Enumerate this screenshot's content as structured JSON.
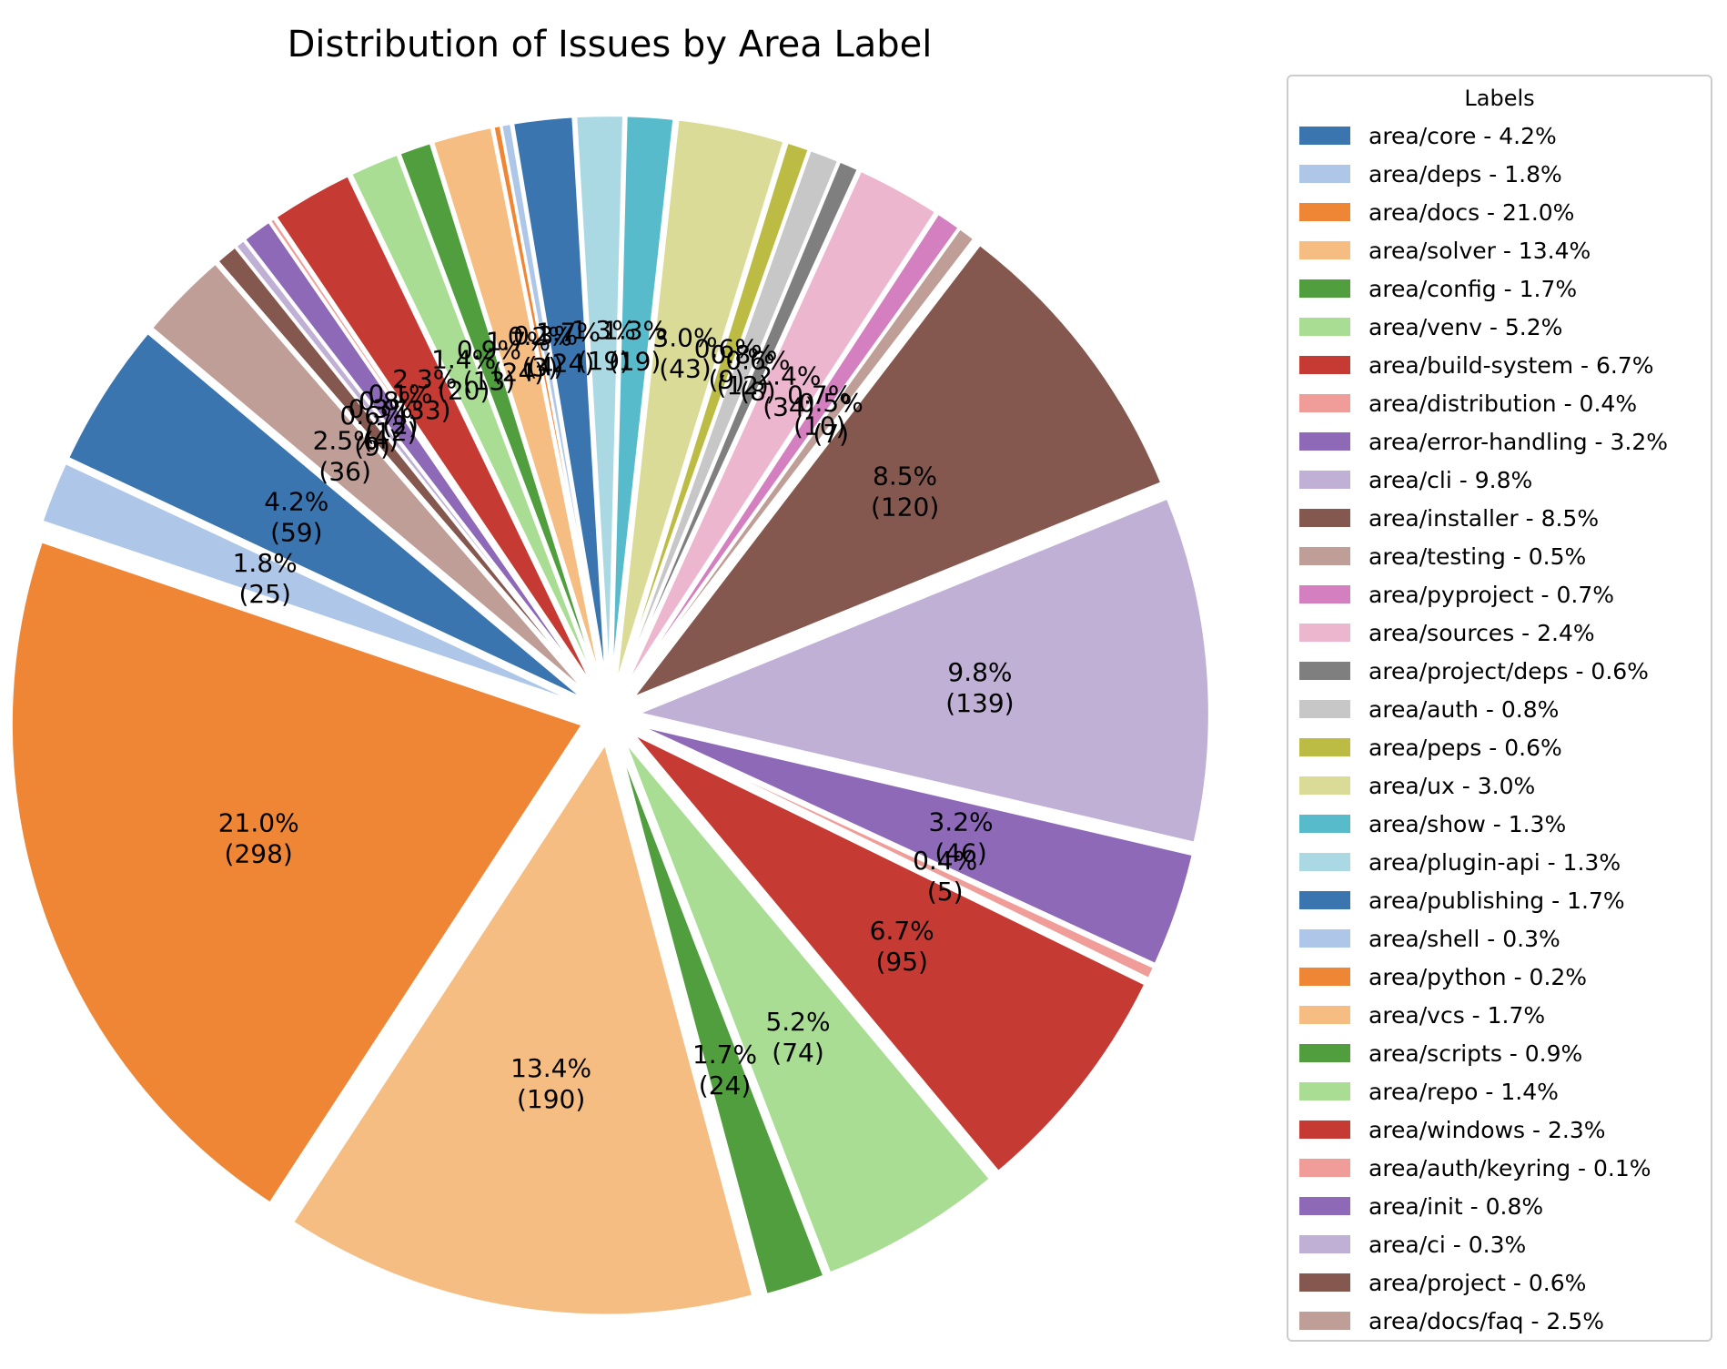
{
  "chart_data": {
    "type": "pie",
    "title": "Distribution of Issues by Area Label",
    "legend_title": "Labels",
    "legend_placement": "right",
    "slices": [
      {
        "label": "area/core",
        "value": 59,
        "pct": "4.2%",
        "color": "#3b75af"
      },
      {
        "label": "area/deps",
        "value": 25,
        "pct": "1.8%",
        "color": "#aec7e8"
      },
      {
        "label": "area/docs",
        "value": 298,
        "pct": "21.0%",
        "color": "#ef8636"
      },
      {
        "label": "area/solver",
        "value": 190,
        "pct": "13.4%",
        "color": "#f5bd82"
      },
      {
        "label": "area/config",
        "value": 24,
        "pct": "1.7%",
        "color": "#519e3e"
      },
      {
        "label": "area/venv",
        "value": 74,
        "pct": "5.2%",
        "color": "#a8dd93"
      },
      {
        "label": "area/build-system",
        "value": 95,
        "pct": "6.7%",
        "color": "#c53a32"
      },
      {
        "label": "area/distribution",
        "value": 5,
        "pct": "0.4%",
        "color": "#f09c98"
      },
      {
        "label": "area/error-handling",
        "value": 46,
        "pct": "3.2%",
        "color": "#8d69b8"
      },
      {
        "label": "area/cli",
        "value": 139,
        "pct": "9.8%",
        "color": "#c0b0d5"
      },
      {
        "label": "area/installer",
        "value": 120,
        "pct": "8.5%",
        "color": "#84584e"
      },
      {
        "label": "area/testing",
        "value": 7,
        "pct": "0.5%",
        "color": "#be9e96"
      },
      {
        "label": "area/pyproject",
        "value": 10,
        "pct": "0.7%",
        "color": "#d47fbf"
      },
      {
        "label": "area/sources",
        "value": 34,
        "pct": "2.4%",
        "color": "#ecb6ce"
      },
      {
        "label": "area/project/deps",
        "value": 8,
        "pct": "0.6%",
        "color": "#7f7f7f"
      },
      {
        "label": "area/auth",
        "value": 12,
        "pct": "0.8%",
        "color": "#c7c7c7"
      },
      {
        "label": "area/peps",
        "value": 9,
        "pct": "0.6%",
        "color": "#bcbc45"
      },
      {
        "label": "area/ux",
        "value": 43,
        "pct": "3.0%",
        "color": "#dbdb98"
      },
      {
        "label": "area/show",
        "value": 19,
        "pct": "1.3%",
        "color": "#58bbcc"
      },
      {
        "label": "area/plugin-api",
        "value": 19,
        "pct": "1.3%",
        "color": "#abd9e3"
      },
      {
        "label": "area/publishing",
        "value": 24,
        "pct": "1.7%",
        "color": "#3b75af"
      },
      {
        "label": "area/shell",
        "value": 4,
        "pct": "0.3%",
        "color": "#aec7e8"
      },
      {
        "label": "area/python",
        "value": 3,
        "pct": "0.2%",
        "color": "#ef8636"
      },
      {
        "label": "area/vcs",
        "value": 24,
        "pct": "1.7%",
        "color": "#f5bd82"
      },
      {
        "label": "area/scripts",
        "value": 13,
        "pct": "0.9%",
        "color": "#519e3e"
      },
      {
        "label": "area/repo",
        "value": 20,
        "pct": "1.4%",
        "color": "#a8dd93"
      },
      {
        "label": "area/windows",
        "value": 33,
        "pct": "2.3%",
        "color": "#c53a32"
      },
      {
        "label": "area/auth/keyring",
        "value": 2,
        "pct": "0.1%",
        "color": "#f09c98"
      },
      {
        "label": "area/init",
        "value": 12,
        "pct": "0.8%",
        "color": "#8d69b8"
      },
      {
        "label": "area/ci",
        "value": 4,
        "pct": "0.3%",
        "color": "#c0b0d5"
      },
      {
        "label": "area/project",
        "value": 9,
        "pct": "0.6%",
        "color": "#84584e"
      },
      {
        "label": "area/docs/faq",
        "value": 36,
        "pct": "2.5%",
        "color": "#be9e96"
      }
    ]
  }
}
